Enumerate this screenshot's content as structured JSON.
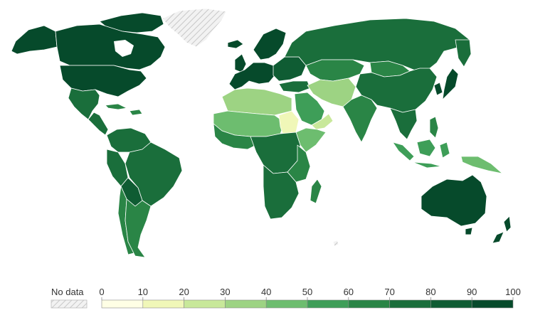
{
  "legend": {
    "no_data_label": "No data",
    "scale": [
      {
        "label": "0",
        "color": "#ffffe5"
      },
      {
        "label": "10",
        "color": "#f0f7b8"
      },
      {
        "label": "20",
        "color": "#c8e89a"
      },
      {
        "label": "30",
        "color": "#9dd383"
      },
      {
        "label": "40",
        "color": "#6dbd6f"
      },
      {
        "label": "50",
        "color": "#3e9e58"
      },
      {
        "label": "60",
        "color": "#2a8546"
      },
      {
        "label": "70",
        "color": "#1a6e3b"
      },
      {
        "label": "80",
        "color": "#0f5c33"
      },
      {
        "label": "90",
        "color": "#064a2b"
      }
    ],
    "max_label": "100"
  },
  "colors": {
    "no_data_fill": "#f2f2f2",
    "no_data_hatch": "#bdbdbd",
    "border": "#ffffff"
  }
}
